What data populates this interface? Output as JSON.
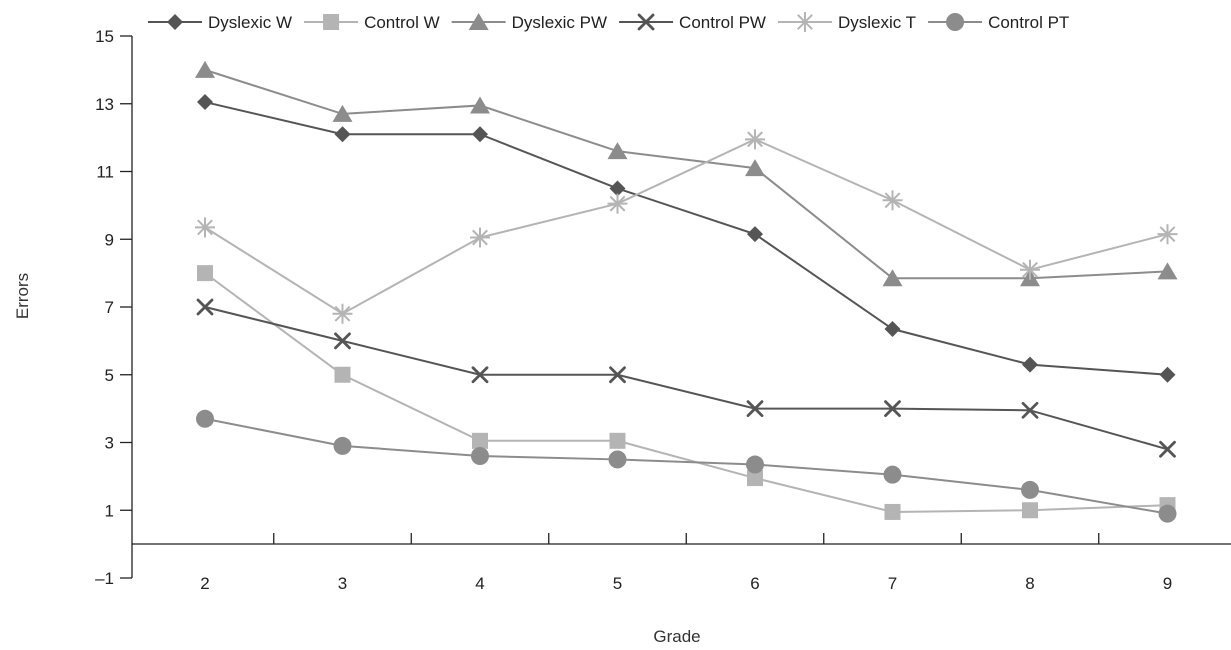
{
  "chart_data": {
    "type": "line",
    "title": "",
    "xlabel": "Grade",
    "ylabel": "Errors",
    "categories": [
      "2",
      "3",
      "4",
      "5",
      "6",
      "7",
      "8",
      "9"
    ],
    "ylim": [
      -1,
      15
    ],
    "yticks": [
      -1,
      1,
      3,
      5,
      7,
      9,
      11,
      13,
      15
    ],
    "ytick_labels": [
      "–1",
      "1",
      "3",
      "5",
      "7",
      "9",
      "11",
      "13",
      "15"
    ],
    "grid": false,
    "legend_position": "top",
    "series": [
      {
        "name": "Dyslexic W",
        "marker": "diamond",
        "color": "#555555",
        "values": [
          13.05,
          12.1,
          12.1,
          10.5,
          9.15,
          6.35,
          5.3,
          5.0
        ]
      },
      {
        "name": "Control W",
        "marker": "square",
        "color": "#b4b4b4",
        "values": [
          8.0,
          5.0,
          3.05,
          3.05,
          1.95,
          0.95,
          1.0,
          1.15
        ]
      },
      {
        "name": "Dyslexic PW",
        "marker": "triangle",
        "color": "#8c8c8c",
        "values": [
          14.0,
          12.7,
          12.95,
          11.6,
          11.1,
          7.85,
          7.85,
          8.05
        ]
      },
      {
        "name": "Control PW",
        "marker": "x",
        "color": "#555555",
        "values": [
          7.0,
          6.0,
          5.0,
          5.0,
          4.0,
          4.0,
          3.95,
          2.8
        ]
      },
      {
        "name": "Dyslexic T",
        "marker": "asterisk",
        "color": "#b4b4b4",
        "values": [
          9.35,
          6.8,
          9.05,
          10.05,
          11.95,
          10.15,
          8.1,
          9.15
        ]
      },
      {
        "name": "Control PT",
        "marker": "circle",
        "color": "#8c8c8c",
        "values": [
          3.7,
          2.9,
          2.6,
          2.5,
          2.35,
          2.05,
          1.6,
          0.9
        ]
      }
    ]
  }
}
